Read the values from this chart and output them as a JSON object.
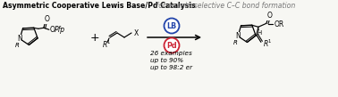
{
  "title_bold": "Asymmetric Cooperative Lewis Base/Pd Catalysis",
  "title_italic": " for enantioselective C–C bond formation",
  "bg_color": "#f7f7f3",
  "lb_circle_color": "#2244aa",
  "pd_circle_color": "#cc2233",
  "lb_text": "LB",
  "pd_text": "Pd",
  "stats_line1": "26 examples",
  "stats_line2": "up to 90%",
  "stats_line3": "up to 98:2 er",
  "pfp_label": "OPfp",
  "x_label": "X",
  "r_label": "R",
  "r1_label": "R",
  "or_label": "OR",
  "o_label": "O",
  "h_label": "H",
  "n_label": "N"
}
